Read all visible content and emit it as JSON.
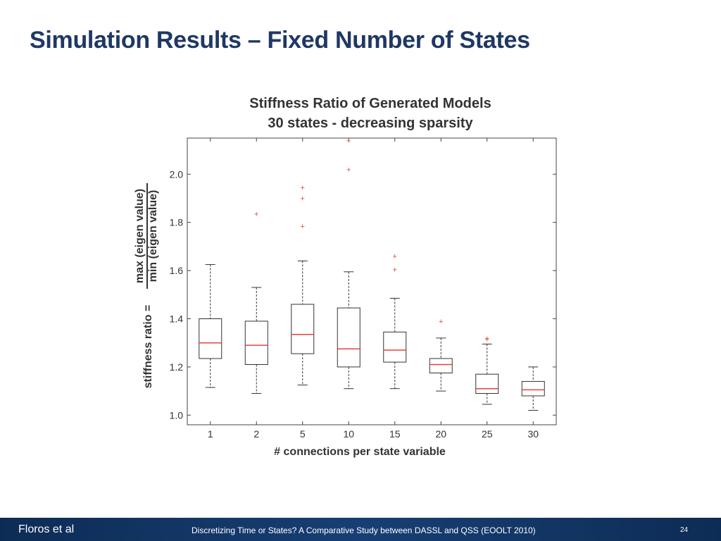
{
  "slide": {
    "title": "Simulation Results – Fixed Number of States"
  },
  "footer": {
    "author": "Floros et al",
    "citation": "Discretizing Time or States? A Comparative Study between DASSL and QSS   (EOOLT 2010)",
    "page": "24"
  },
  "colors": {
    "title": "#1F3864",
    "footer_bar": "#173f74",
    "median": "#e8423c",
    "outlier": "#e8423c",
    "box": "#333333"
  },
  "chart_data": {
    "type": "box",
    "title": "Stiffness Ratio of Generated Models",
    "subtitle": "30 states - decreasing sparsity",
    "xlabel": "# connections per state variable",
    "ylabel_prefix": "stiffness ratio =",
    "ylabel_numerator": "max (eigen value)",
    "ylabel_denominator": "min (eigen value)",
    "ylim": [
      0.96,
      2.15
    ],
    "yticks": [
      1.0,
      1.2,
      1.4,
      1.6,
      1.8,
      2.0
    ],
    "ytick_labels": [
      "1.0",
      "1.2",
      "1.4",
      "1.6",
      "1.8",
      "2.0"
    ],
    "categories": [
      "1",
      "2",
      "5",
      "10",
      "15",
      "20",
      "25",
      "30"
    ],
    "boxes": [
      {
        "category": "1",
        "whisker_low": 1.115,
        "q1": 1.235,
        "median": 1.3,
        "q3": 1.4,
        "whisker_high": 1.625,
        "outliers": []
      },
      {
        "category": "2",
        "whisker_low": 1.09,
        "q1": 1.21,
        "median": 1.29,
        "q3": 1.39,
        "whisker_high": 1.53,
        "outliers": [
          1.835
        ]
      },
      {
        "category": "5",
        "whisker_low": 1.125,
        "q1": 1.255,
        "median": 1.335,
        "q3": 1.46,
        "whisker_high": 1.64,
        "outliers": [
          1.945,
          1.9,
          1.785
        ]
      },
      {
        "category": "10",
        "whisker_low": 1.11,
        "q1": 1.2,
        "median": 1.275,
        "q3": 1.445,
        "whisker_high": 1.595,
        "outliers": [
          2.14,
          2.02
        ]
      },
      {
        "category": "15",
        "whisker_low": 1.11,
        "q1": 1.22,
        "median": 1.27,
        "q3": 1.345,
        "whisker_high": 1.485,
        "outliers": [
          1.66,
          1.605
        ]
      },
      {
        "category": "20",
        "whisker_low": 1.1,
        "q1": 1.175,
        "median": 1.21,
        "q3": 1.235,
        "whisker_high": 1.32,
        "outliers": [
          1.39
        ]
      },
      {
        "category": "25",
        "whisker_low": 1.045,
        "q1": 1.09,
        "median": 1.11,
        "q3": 1.17,
        "whisker_high": 1.295,
        "outliers": [
          1.32,
          1.315
        ]
      },
      {
        "category": "30",
        "whisker_low": 1.02,
        "q1": 1.08,
        "median": 1.105,
        "q3": 1.14,
        "whisker_high": 1.2,
        "outliers": []
      }
    ],
    "grid": false
  }
}
